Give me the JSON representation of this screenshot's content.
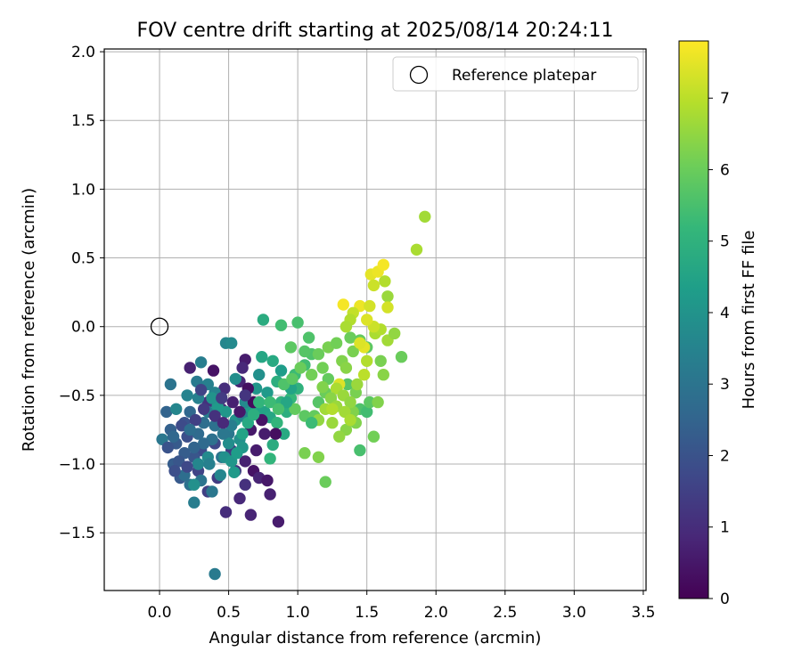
{
  "chart_data": {
    "type": "scatter",
    "title": "FOV centre drift starting at 2025/08/14 20:24:11",
    "xlabel": "Angular distance from reference (arcmin)",
    "ylabel": "Rotation from reference (arcmin)",
    "xlim": [
      -0.4,
      3.52
    ],
    "ylim": [
      -1.92,
      2.02
    ],
    "x_ticks": [
      0.0,
      0.5,
      1.0,
      1.5,
      2.0,
      2.5,
      3.0,
      3.5
    ],
    "x_tick_labels": [
      "0.0",
      "0.5",
      "1.0",
      "1.5",
      "2.0",
      "2.5",
      "3.0",
      "3.5"
    ],
    "y_ticks": [
      -1.5,
      -1.0,
      -0.5,
      0.0,
      0.5,
      1.0,
      1.5,
      2.0
    ],
    "y_tick_labels": [
      "−1.5",
      "−1.0",
      "−0.5",
      "0.0",
      "0.5",
      "1.0",
      "1.5",
      "2.0"
    ],
    "grid": true,
    "legend": {
      "position": "top-right",
      "entries": [
        "Reference platepar"
      ]
    },
    "reference_point": {
      "x": 0.0,
      "y": 0.0,
      "label": "Reference platepar"
    },
    "colorbar": {
      "label": "Hours from first FF file",
      "range": [
        0,
        7.8
      ],
      "ticks": [
        0,
        1,
        2,
        3,
        4,
        5,
        6,
        7
      ],
      "colormap": "viridis",
      "colors": [
        "#440154",
        "#482878",
        "#3e4989",
        "#31688e",
        "#26828e",
        "#1f9e89",
        "#35b779",
        "#6ece58",
        "#b5de2b",
        "#fde725"
      ]
    },
    "points": [
      [
        0.39,
        -0.32,
        0.4
      ],
      [
        0.22,
        -0.3,
        0.7
      ],
      [
        0.62,
        -0.24,
        0.6
      ],
      [
        0.6,
        -0.3,
        0.9
      ],
      [
        0.58,
        -0.4,
        0.8
      ],
      [
        0.47,
        -0.45,
        1.0
      ],
      [
        0.35,
        -0.55,
        1.1
      ],
      [
        0.45,
        -0.6,
        0.9
      ],
      [
        0.66,
        -0.75,
        0.5
      ],
      [
        0.7,
        -0.9,
        0.6
      ],
      [
        0.62,
        -0.98,
        0.7
      ],
      [
        0.68,
        -1.05,
        0.4
      ],
      [
        0.72,
        -1.1,
        0.8
      ],
      [
        0.78,
        -1.12,
        0.5
      ],
      [
        0.8,
        -1.22,
        0.7
      ],
      [
        0.86,
        -1.42,
        0.6
      ],
      [
        0.66,
        -1.37,
        0.8
      ],
      [
        0.58,
        -1.25,
        0.9
      ],
      [
        0.48,
        -1.35,
        1.0
      ],
      [
        0.62,
        -1.15,
        1.1
      ],
      [
        0.55,
        -1.05,
        1.2
      ],
      [
        0.52,
        -0.9,
        1.3
      ],
      [
        0.42,
        -1.1,
        1.4
      ],
      [
        0.35,
        -1.2,
        1.5
      ],
      [
        0.28,
        -1.05,
        1.6
      ],
      [
        0.4,
        -0.85,
        1.7
      ],
      [
        0.3,
        -0.9,
        1.8
      ],
      [
        0.2,
        -0.8,
        1.9
      ],
      [
        0.18,
        -0.7,
        2.0
      ],
      [
        0.25,
        -0.95,
        2.1
      ],
      [
        0.15,
        -1.1,
        2.2
      ],
      [
        0.1,
        -1.0,
        2.3
      ],
      [
        0.12,
        -0.85,
        2.2
      ],
      [
        0.08,
        -0.75,
        2.4
      ],
      [
        0.05,
        -0.62,
        2.5
      ],
      [
        0.22,
        -0.62,
        2.6
      ],
      [
        0.28,
        -0.78,
        2.7
      ],
      [
        0.32,
        -0.7,
        2.8
      ],
      [
        0.38,
        -0.82,
        2.9
      ],
      [
        0.45,
        -0.95,
        3.0
      ],
      [
        0.5,
        -0.78,
        3.1
      ],
      [
        0.42,
        -0.7,
        3.2
      ],
      [
        0.35,
        -0.62,
        3.3
      ],
      [
        0.28,
        -0.52,
        3.4
      ],
      [
        0.2,
        -0.5,
        3.5
      ],
      [
        0.12,
        -0.6,
        3.6
      ],
      [
        0.02,
        -0.82,
        3.1
      ],
      [
        0.08,
        -0.42,
        3.0
      ],
      [
        0.27,
        -0.4,
        3.2
      ],
      [
        0.3,
        -0.26,
        3.3
      ],
      [
        0.35,
        -0.42,
        3.4
      ],
      [
        0.4,
        -0.48,
        3.5
      ],
      [
        0.48,
        -0.12,
        3.6
      ],
      [
        0.52,
        -0.12,
        3.7
      ],
      [
        0.55,
        -0.38,
        3.8
      ],
      [
        0.25,
        -1.28,
        3.3
      ],
      [
        0.4,
        -1.8,
        3.2
      ],
      [
        0.38,
        -1.2,
        3.1
      ],
      [
        0.3,
        -1.12,
        3.0
      ],
      [
        0.22,
        -1.15,
        2.9
      ],
      [
        0.18,
        -1.08,
        2.8
      ],
      [
        0.28,
        -1.0,
        3.6
      ],
      [
        0.35,
        -0.95,
        3.7
      ],
      [
        0.5,
        -0.85,
        3.8
      ],
      [
        0.58,
        -0.82,
        3.9
      ],
      [
        0.55,
        -0.68,
        4.0
      ],
      [
        0.48,
        -0.62,
        4.1
      ],
      [
        0.42,
        -0.58,
        4.2
      ],
      [
        0.38,
        -0.52,
        4.0
      ],
      [
        0.25,
        -1.15,
        3.9
      ],
      [
        0.54,
        -1.06,
        4.2
      ],
      [
        0.6,
        -0.88,
        4.1
      ],
      [
        0.65,
        -0.62,
        4.3
      ],
      [
        0.7,
        -0.58,
        4.4
      ],
      [
        0.76,
        -0.62,
        4.5
      ],
      [
        0.74,
        -0.22,
        4.6
      ],
      [
        0.75,
        0.05,
        4.8
      ],
      [
        0.82,
        -0.25,
        4.7
      ],
      [
        0.85,
        -0.4,
        4.9
      ],
      [
        0.88,
        -0.55,
        5.0
      ],
      [
        0.8,
        -0.66,
        4.6
      ],
      [
        0.82,
        -0.86,
        4.8
      ],
      [
        0.8,
        -0.96,
        5.1
      ],
      [
        0.9,
        -0.78,
        4.7
      ],
      [
        0.92,
        -0.62,
        4.9
      ],
      [
        0.95,
        -0.52,
        5.2
      ],
      [
        1.0,
        -0.45,
        5.0
      ],
      [
        0.98,
        -0.35,
        5.3
      ],
      [
        0.88,
        0.01,
        5.4
      ],
      [
        1.0,
        0.03,
        5.5
      ],
      [
        1.05,
        -0.28,
        5.4
      ],
      [
        1.1,
        -0.2,
        5.6
      ],
      [
        1.05,
        -0.18,
        5.7
      ],
      [
        1.08,
        -0.08,
        5.6
      ],
      [
        0.95,
        -0.15,
        5.8
      ],
      [
        0.98,
        -0.6,
        5.9
      ],
      [
        1.05,
        -0.65,
        5.8
      ],
      [
        1.12,
        -0.65,
        5.9
      ],
      [
        1.15,
        -0.55,
        5.7
      ],
      [
        1.2,
        -0.48,
        6.0
      ],
      [
        1.22,
        -0.38,
        5.9
      ],
      [
        1.18,
        -0.3,
        6.1
      ],
      [
        1.15,
        -0.2,
        6.0
      ],
      [
        1.22,
        -0.15,
        6.2
      ],
      [
        1.28,
        -0.12,
        6.1
      ],
      [
        1.32,
        -0.25,
        6.3
      ],
      [
        1.35,
        -0.3,
        6.4
      ],
      [
        1.4,
        -0.18,
        6.2
      ],
      [
        1.38,
        -0.08,
        6.0
      ],
      [
        1.45,
        -0.1,
        5.9
      ],
      [
        1.5,
        -0.15,
        5.8
      ],
      [
        1.36,
        -0.42,
        5.7
      ],
      [
        1.42,
        -0.48,
        6.2
      ],
      [
        1.45,
        -0.6,
        5.6
      ],
      [
        1.5,
        -0.62,
        5.4
      ],
      [
        1.52,
        -0.55,
        5.8
      ],
      [
        1.4,
        -0.62,
        6.3
      ],
      [
        1.35,
        -0.75,
        6.4
      ],
      [
        1.3,
        -0.8,
        6.5
      ],
      [
        1.25,
        -0.7,
        6.6
      ],
      [
        1.2,
        -0.6,
        6.7
      ],
      [
        1.15,
        -0.68,
        6.5
      ],
      [
        1.05,
        -0.92,
        6.2
      ],
      [
        1.15,
        -0.95,
        6.3
      ],
      [
        1.2,
        -1.13,
        6.0
      ],
      [
        1.45,
        -0.9,
        5.5
      ],
      [
        1.55,
        -0.8,
        6.1
      ],
      [
        1.58,
        -0.55,
        6.3
      ],
      [
        1.62,
        -0.35,
        6.4
      ],
      [
        1.6,
        -0.25,
        6.2
      ],
      [
        1.56,
        -0.05,
        6.8
      ],
      [
        1.6,
        -0.02,
        6.9
      ],
      [
        1.65,
        -0.1,
        6.7
      ],
      [
        1.7,
        -0.05,
        6.5
      ],
      [
        1.75,
        -0.22,
        6.0
      ],
      [
        1.55,
        0.0,
        7.2
      ],
      [
        1.5,
        0.05,
        7.4
      ],
      [
        1.45,
        0.15,
        7.6
      ],
      [
        1.52,
        0.15,
        7.3
      ],
      [
        1.4,
        0.1,
        7.1
      ],
      [
        1.38,
        0.05,
        6.9
      ],
      [
        1.35,
        0.0,
        6.8
      ],
      [
        1.33,
        0.16,
        7.7
      ],
      [
        1.53,
        0.38,
        7.5
      ],
      [
        1.58,
        0.4,
        7.6
      ],
      [
        1.62,
        0.45,
        7.7
      ],
      [
        1.55,
        0.3,
        7.2
      ],
      [
        1.65,
        0.22,
        6.6
      ],
      [
        1.65,
        0.14,
        7.3
      ],
      [
        1.63,
        0.33,
        6.9
      ],
      [
        1.86,
        0.56,
        6.8
      ],
      [
        1.92,
        0.8,
        6.7
      ],
      [
        1.43,
        -0.42,
        6.6
      ],
      [
        1.3,
        -0.42,
        7.4
      ],
      [
        1.28,
        -0.45,
        6.8
      ],
      [
        1.33,
        -0.5,
        6.6
      ],
      [
        1.38,
        -0.55,
        6.5
      ],
      [
        1.42,
        -0.7,
        6.3
      ],
      [
        1.48,
        -0.35,
        7.0
      ],
      [
        1.5,
        -0.25,
        6.9
      ],
      [
        1.48,
        -0.15,
        7.5
      ],
      [
        1.45,
        -0.12,
        7.4
      ],
      [
        1.1,
        -0.7,
        5.3
      ],
      [
        0.85,
        -0.7,
        5.1
      ],
      [
        0.92,
        -0.55,
        4.6
      ],
      [
        0.95,
        -0.45,
        4.5
      ],
      [
        0.88,
        -0.32,
        4.3
      ],
      [
        0.78,
        -0.48,
        4.2
      ],
      [
        0.7,
        -0.45,
        4.1
      ],
      [
        0.72,
        -0.35,
        3.9
      ],
      [
        0.62,
        -0.55,
        3.7
      ],
      [
        0.6,
        -0.65,
        3.5
      ],
      [
        0.52,
        -0.72,
        3.3
      ],
      [
        0.46,
        -0.78,
        3.1
      ],
      [
        0.4,
        -0.72,
        2.9
      ],
      [
        0.32,
        -0.85,
        2.7
      ],
      [
        0.25,
        -0.88,
        2.5
      ],
      [
        0.18,
        -0.92,
        2.3
      ],
      [
        0.14,
        -0.98,
        2.1
      ],
      [
        0.11,
        -1.05,
        1.9
      ],
      [
        0.2,
        -1.02,
        1.7
      ],
      [
        0.26,
        -0.68,
        1.5
      ],
      [
        0.32,
        -0.6,
        1.3
      ],
      [
        0.4,
        -0.65,
        1.1
      ],
      [
        0.46,
        -0.7,
        0.9
      ],
      [
        0.53,
        -0.55,
        0.7
      ],
      [
        0.58,
        -0.62,
        0.5
      ],
      [
        0.64,
        -0.45,
        0.3
      ],
      [
        0.68,
        -0.55,
        0.2
      ],
      [
        0.74,
        -0.68,
        0.4
      ],
      [
        0.84,
        -0.78,
        0.3
      ],
      [
        0.76,
        -0.78,
        0.6
      ],
      [
        0.62,
        -0.5,
        1.2
      ],
      [
        0.45,
        -0.52,
        1.4
      ],
      [
        0.3,
        -0.46,
        1.6
      ],
      [
        0.16,
        -0.72,
        1.8
      ],
      [
        0.06,
        -0.88,
        2.0
      ],
      [
        0.1,
        -0.8,
        2.6
      ],
      [
        0.22,
        -0.75,
        2.8
      ],
      [
        0.36,
        -1.0,
        3.4
      ],
      [
        0.44,
        -1.08,
        3.6
      ],
      [
        0.47,
        -0.95,
        3.9
      ],
      [
        0.52,
        -0.98,
        4.1
      ],
      [
        0.56,
        -0.92,
        4.3
      ],
      [
        0.6,
        -0.78,
        4.5
      ],
      [
        0.64,
        -0.7,
        4.7
      ],
      [
        0.68,
        -0.64,
        4.9
      ],
      [
        0.72,
        -0.55,
        5.1
      ],
      [
        0.8,
        -0.55,
        5.3
      ],
      [
        0.86,
        -0.6,
        5.5
      ],
      [
        0.9,
        -0.42,
        5.6
      ],
      [
        0.96,
        -0.38,
        5.8
      ],
      [
        1.02,
        -0.3,
        6.0
      ],
      [
        1.1,
        -0.35,
        6.1
      ],
      [
        1.18,
        -0.44,
        6.3
      ],
      [
        1.24,
        -0.52,
        6.4
      ],
      [
        1.28,
        -0.58,
        6.6
      ],
      [
        1.34,
        -0.62,
        6.7
      ],
      [
        1.38,
        -0.68,
        6.8
      ],
      [
        1.25,
        -0.6,
        6.9
      ]
    ]
  }
}
